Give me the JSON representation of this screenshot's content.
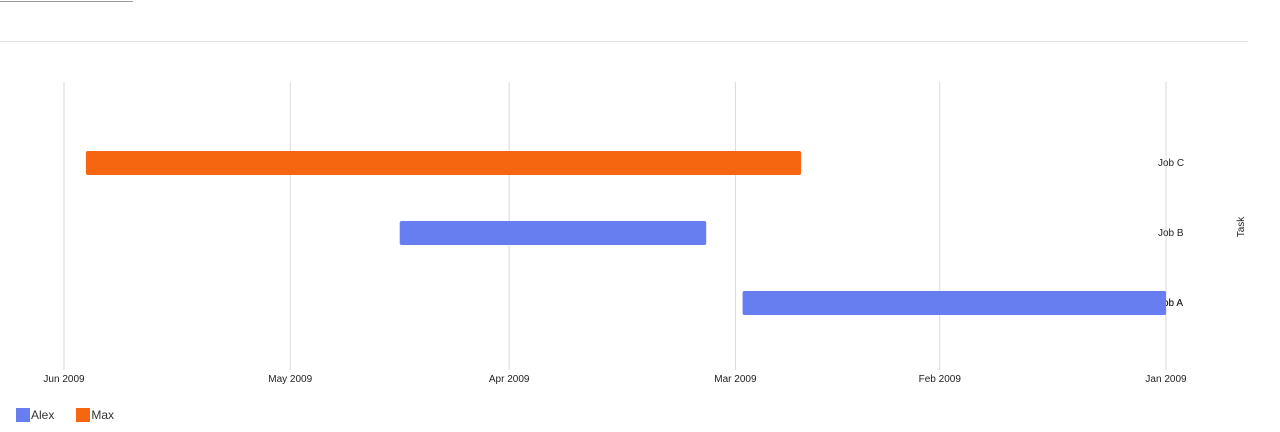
{
  "chart_data": {
    "type": "bar",
    "orientation": "horizontal",
    "x_axis_reversed": true,
    "xlabel": "",
    "ylabel": "Task",
    "x_ticks": [
      "Jan 2009",
      "Feb 2009",
      "Mar 2009",
      "Apr 2009",
      "May 2009",
      "Jun 2009"
    ],
    "xlim": [
      "2009-01-01",
      "2009-06-01"
    ],
    "grid": true,
    "legend": "bottom-left",
    "categories": [
      "Job C",
      "Job B",
      "Job A"
    ],
    "tasks": [
      {
        "label": "Job C",
        "resource": "Max",
        "start": "2009-02-20",
        "end": "2009-05-29"
      },
      {
        "label": "Job B",
        "resource": "Alex",
        "start": "2009-03-05",
        "end": "2009-04-16"
      },
      {
        "label": "Job A",
        "resource": "Alex",
        "start": "2009-01-01",
        "end": "2009-02-28"
      }
    ],
    "series": [
      {
        "name": "Alex",
        "color": "#677ef0"
      },
      {
        "name": "Max",
        "color": "#f6650f"
      }
    ]
  }
}
